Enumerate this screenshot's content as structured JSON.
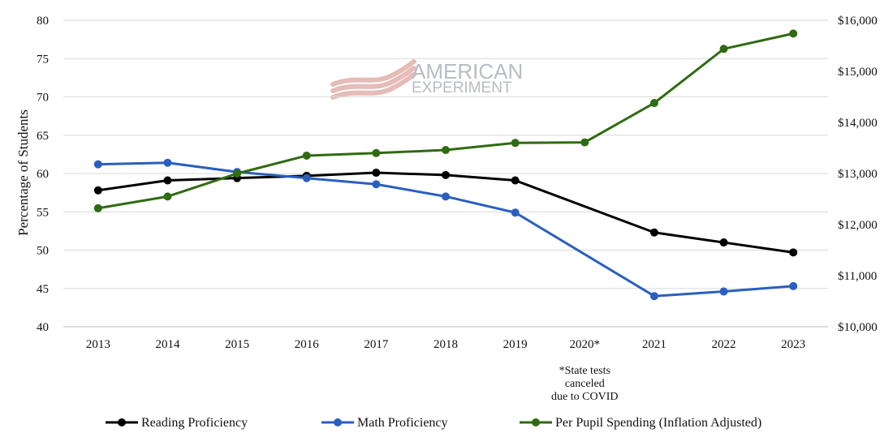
{
  "logo": {
    "line1": "AMERICAN",
    "line2": "EXPERIMENT",
    "color": "#b9bcc4",
    "swoosh_color": "#e2b0ab"
  },
  "chart_data": {
    "type": "line",
    "categories": [
      "2013",
      "2014",
      "2015",
      "2016",
      "2017",
      "2018",
      "2019",
      "2020*",
      "2021",
      "2022",
      "2023"
    ],
    "ylabel": "Percentage of Students",
    "ylim": [
      40,
      80
    ],
    "y_ticks": [
      "40",
      "45",
      "50",
      "55",
      "60",
      "65",
      "70",
      "75",
      "80"
    ],
    "y2lim": [
      10000,
      16000
    ],
    "y2_ticks": [
      "$10,000",
      "$11,000",
      "$12,000",
      "$13,000",
      "$14,000",
      "$15,000",
      "$16,000"
    ],
    "grid": true,
    "legend_position": "bottom",
    "annotation": [
      "*State tests",
      "canceled",
      "due to COVID"
    ],
    "series": [
      {
        "name": "Reading Proficiency",
        "axis": "left",
        "color": "#000000",
        "values": [
          57.8,
          59.1,
          59.4,
          59.7,
          60.1,
          59.8,
          59.1,
          null,
          52.3,
          51.0,
          49.7
        ]
      },
      {
        "name": "Math Proficiency",
        "axis": "left",
        "color": "#2a5fbf",
        "values": [
          61.2,
          61.4,
          60.2,
          59.4,
          58.6,
          57.0,
          54.9,
          null,
          44.0,
          44.6,
          45.3
        ]
      },
      {
        "name": "Per Pupil Spending (Inflation Adjusted)",
        "axis": "right",
        "color": "#2f6b12",
        "values": [
          12320,
          12550,
          13000,
          13350,
          13400,
          13460,
          13600,
          13610,
          14380,
          15440,
          15740
        ]
      }
    ]
  }
}
